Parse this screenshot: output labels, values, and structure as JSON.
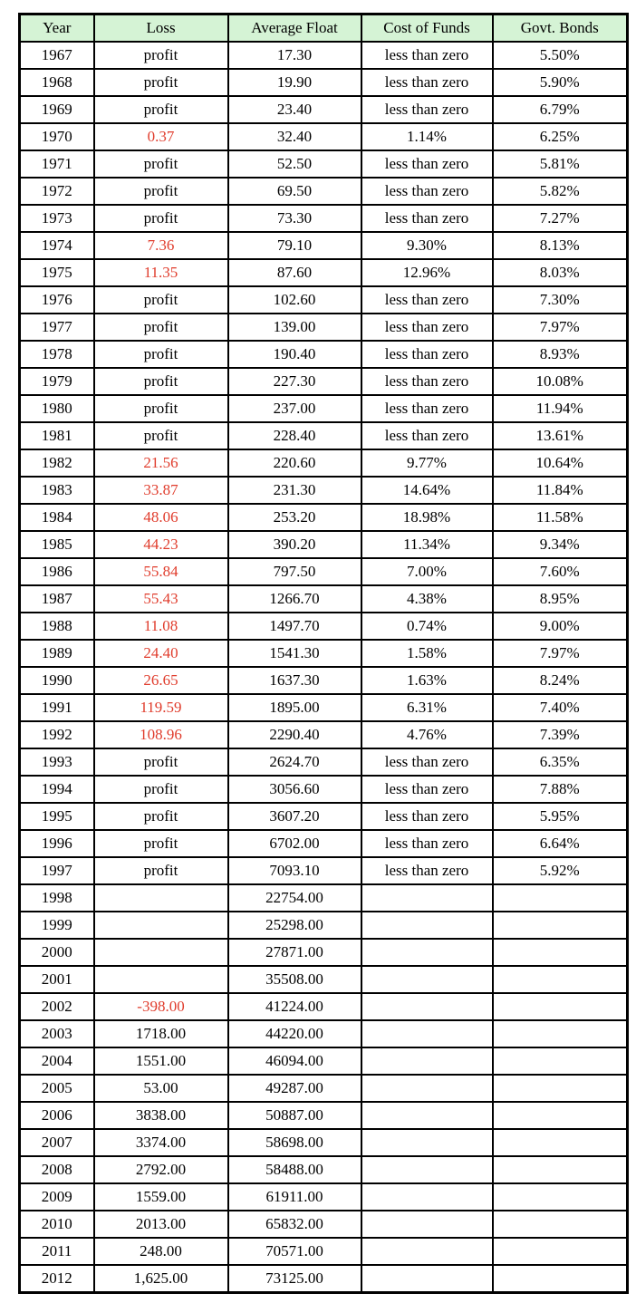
{
  "colors": {
    "header_bg": "#d5f3d5",
    "negative_red": "#e03c2c",
    "border": "#000000",
    "text": "#000000"
  },
  "chart_data": {
    "type": "table",
    "title": "",
    "columns": [
      "Year",
      "Loss",
      "Average Float",
      "Cost of Funds",
      "Govt. Bonds"
    ],
    "rows": [
      {
        "year": "1967",
        "loss": "profit",
        "loss_red": false,
        "avg_float": "17.30",
        "cost_of_funds": "less than zero",
        "govt_bonds": "5.50%"
      },
      {
        "year": "1968",
        "loss": "profit",
        "loss_red": false,
        "avg_float": "19.90",
        "cost_of_funds": "less than zero",
        "govt_bonds": "5.90%"
      },
      {
        "year": "1969",
        "loss": "profit",
        "loss_red": false,
        "avg_float": "23.40",
        "cost_of_funds": "less than zero",
        "govt_bonds": "6.79%"
      },
      {
        "year": "1970",
        "loss": "0.37",
        "loss_red": true,
        "avg_float": "32.40",
        "cost_of_funds": "1.14%",
        "govt_bonds": "6.25%"
      },
      {
        "year": "1971",
        "loss": "profit",
        "loss_red": false,
        "avg_float": "52.50",
        "cost_of_funds": "less than zero",
        "govt_bonds": "5.81%"
      },
      {
        "year": "1972",
        "loss": "profit",
        "loss_red": false,
        "avg_float": "69.50",
        "cost_of_funds": "less than zero",
        "govt_bonds": "5.82%"
      },
      {
        "year": "1973",
        "loss": "profit",
        "loss_red": false,
        "avg_float": "73.30",
        "cost_of_funds": "less than zero",
        "govt_bonds": "7.27%"
      },
      {
        "year": "1974",
        "loss": "7.36",
        "loss_red": true,
        "avg_float": "79.10",
        "cost_of_funds": "9.30%",
        "govt_bonds": "8.13%"
      },
      {
        "year": "1975",
        "loss": "11.35",
        "loss_red": true,
        "avg_float": "87.60",
        "cost_of_funds": "12.96%",
        "govt_bonds": "8.03%"
      },
      {
        "year": "1976",
        "loss": "profit",
        "loss_red": false,
        "avg_float": "102.60",
        "cost_of_funds": "less than zero",
        "govt_bonds": "7.30%"
      },
      {
        "year": "1977",
        "loss": "profit",
        "loss_red": false,
        "avg_float": "139.00",
        "cost_of_funds": "less than zero",
        "govt_bonds": "7.97%"
      },
      {
        "year": "1978",
        "loss": "profit",
        "loss_red": false,
        "avg_float": "190.40",
        "cost_of_funds": "less than zero",
        "govt_bonds": "8.93%"
      },
      {
        "year": "1979",
        "loss": "profit",
        "loss_red": false,
        "avg_float": "227.30",
        "cost_of_funds": "less than zero",
        "govt_bonds": "10.08%"
      },
      {
        "year": "1980",
        "loss": "profit",
        "loss_red": false,
        "avg_float": "237.00",
        "cost_of_funds": "less than zero",
        "govt_bonds": "11.94%"
      },
      {
        "year": "1981",
        "loss": "profit",
        "loss_red": false,
        "avg_float": "228.40",
        "cost_of_funds": "less than zero",
        "govt_bonds": "13.61%"
      },
      {
        "year": "1982",
        "loss": "21.56",
        "loss_red": true,
        "avg_float": "220.60",
        "cost_of_funds": "9.77%",
        "govt_bonds": "10.64%"
      },
      {
        "year": "1983",
        "loss": "33.87",
        "loss_red": true,
        "avg_float": "231.30",
        "cost_of_funds": "14.64%",
        "govt_bonds": "11.84%"
      },
      {
        "year": "1984",
        "loss": "48.06",
        "loss_red": true,
        "avg_float": "253.20",
        "cost_of_funds": "18.98%",
        "govt_bonds": "11.58%"
      },
      {
        "year": "1985",
        "loss": "44.23",
        "loss_red": true,
        "avg_float": "390.20",
        "cost_of_funds": "11.34%",
        "govt_bonds": "9.34%"
      },
      {
        "year": "1986",
        "loss": "55.84",
        "loss_red": true,
        "avg_float": "797.50",
        "cost_of_funds": "7.00%",
        "govt_bonds": "7.60%"
      },
      {
        "year": "1987",
        "loss": "55.43",
        "loss_red": true,
        "avg_float": "1266.70",
        "cost_of_funds": "4.38%",
        "govt_bonds": "8.95%"
      },
      {
        "year": "1988",
        "loss": "11.08",
        "loss_red": true,
        "avg_float": "1497.70",
        "cost_of_funds": "0.74%",
        "govt_bonds": "9.00%"
      },
      {
        "year": "1989",
        "loss": "24.40",
        "loss_red": true,
        "avg_float": "1541.30",
        "cost_of_funds": "1.58%",
        "govt_bonds": "7.97%"
      },
      {
        "year": "1990",
        "loss": "26.65",
        "loss_red": true,
        "avg_float": "1637.30",
        "cost_of_funds": "1.63%",
        "govt_bonds": "8.24%"
      },
      {
        "year": "1991",
        "loss": "119.59",
        "loss_red": true,
        "avg_float": "1895.00",
        "cost_of_funds": "6.31%",
        "govt_bonds": "7.40%"
      },
      {
        "year": "1992",
        "loss": "108.96",
        "loss_red": true,
        "avg_float": "2290.40",
        "cost_of_funds": "4.76%",
        "govt_bonds": "7.39%"
      },
      {
        "year": "1993",
        "loss": "profit",
        "loss_red": false,
        "avg_float": "2624.70",
        "cost_of_funds": "less than zero",
        "govt_bonds": "6.35%"
      },
      {
        "year": "1994",
        "loss": "profit",
        "loss_red": false,
        "avg_float": "3056.60",
        "cost_of_funds": "less than zero",
        "govt_bonds": "7.88%"
      },
      {
        "year": "1995",
        "loss": "profit",
        "loss_red": false,
        "avg_float": "3607.20",
        "cost_of_funds": "less than zero",
        "govt_bonds": "5.95%"
      },
      {
        "year": "1996",
        "loss": "profit",
        "loss_red": false,
        "avg_float": "6702.00",
        "cost_of_funds": "less than zero",
        "govt_bonds": "6.64%"
      },
      {
        "year": "1997",
        "loss": "profit",
        "loss_red": false,
        "avg_float": "7093.10",
        "cost_of_funds": "less than zero",
        "govt_bonds": "5.92%"
      },
      {
        "year": "1998",
        "loss": "",
        "loss_red": false,
        "avg_float": "22754.00",
        "cost_of_funds": "",
        "govt_bonds": ""
      },
      {
        "year": "1999",
        "loss": "",
        "loss_red": false,
        "avg_float": "25298.00",
        "cost_of_funds": "",
        "govt_bonds": ""
      },
      {
        "year": "2000",
        "loss": "",
        "loss_red": false,
        "avg_float": "27871.00",
        "cost_of_funds": "",
        "govt_bonds": ""
      },
      {
        "year": "2001",
        "loss": "",
        "loss_red": false,
        "avg_float": "35508.00",
        "cost_of_funds": "",
        "govt_bonds": ""
      },
      {
        "year": "2002",
        "loss": "-398.00",
        "loss_red": true,
        "avg_float": "41224.00",
        "cost_of_funds": "",
        "govt_bonds": ""
      },
      {
        "year": "2003",
        "loss": "1718.00",
        "loss_red": false,
        "avg_float": "44220.00",
        "cost_of_funds": "",
        "govt_bonds": ""
      },
      {
        "year": "2004",
        "loss": "1551.00",
        "loss_red": false,
        "avg_float": "46094.00",
        "cost_of_funds": "",
        "govt_bonds": ""
      },
      {
        "year": "2005",
        "loss": "53.00",
        "loss_red": false,
        "avg_float": "49287.00",
        "cost_of_funds": "",
        "govt_bonds": ""
      },
      {
        "year": "2006",
        "loss": "3838.00",
        "loss_red": false,
        "avg_float": "50887.00",
        "cost_of_funds": "",
        "govt_bonds": ""
      },
      {
        "year": "2007",
        "loss": "3374.00",
        "loss_red": false,
        "avg_float": "58698.00",
        "cost_of_funds": "",
        "govt_bonds": ""
      },
      {
        "year": "2008",
        "loss": "2792.00",
        "loss_red": false,
        "avg_float": "58488.00",
        "cost_of_funds": "",
        "govt_bonds": ""
      },
      {
        "year": "2009",
        "loss": "1559.00",
        "loss_red": false,
        "avg_float": "61911.00",
        "cost_of_funds": "",
        "govt_bonds": ""
      },
      {
        "year": "2010",
        "loss": "2013.00",
        "loss_red": false,
        "avg_float": "65832.00",
        "cost_of_funds": "",
        "govt_bonds": ""
      },
      {
        "year": "2011",
        "loss": "248.00",
        "loss_red": false,
        "avg_float": "70571.00",
        "cost_of_funds": "",
        "govt_bonds": ""
      },
      {
        "year": "2012",
        "loss": "1,625.00",
        "loss_red": false,
        "avg_float": "73125.00",
        "cost_of_funds": "",
        "govt_bonds": ""
      }
    ]
  }
}
